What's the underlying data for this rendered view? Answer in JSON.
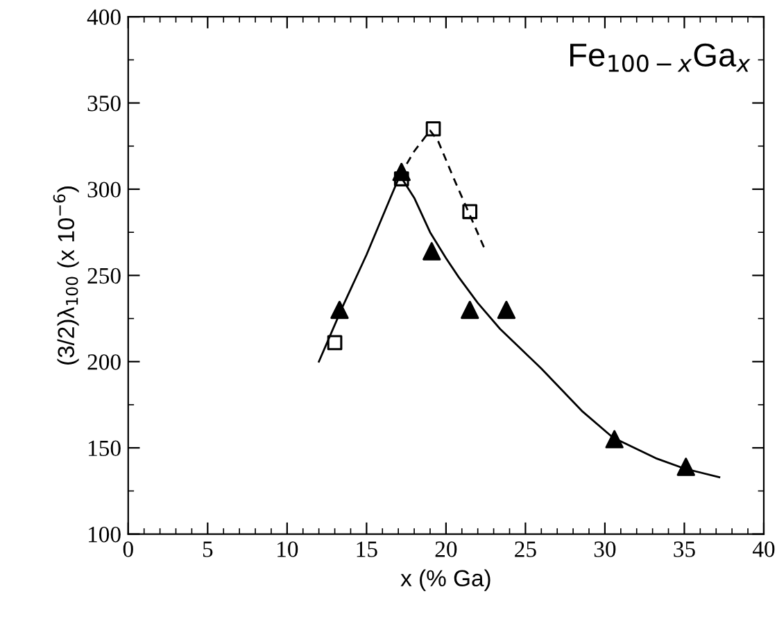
{
  "chart_data": {
    "type": "scatter",
    "xlabel": "x (% Ga)",
    "ylabel": "(3/2)λ$_{100}$ (x 10$^{−6}$)",
    "xlim": [
      0,
      40
    ],
    "ylim": [
      100,
      400
    ],
    "xticks": [
      0,
      5,
      10,
      15,
      20,
      25,
      30,
      35,
      40
    ],
    "yticks": [
      100,
      150,
      200,
      250,
      300,
      350,
      400
    ],
    "grid": false,
    "legend": false,
    "annotations": [
      "Fe$_{100−x}$Ga$_{x}$"
    ],
    "series": [
      {
        "marker": "triangle",
        "color": "#000000",
        "x": [
          13.3,
          17.2,
          19.1,
          21.5,
          23.8,
          30.6,
          35.1
        ],
        "values": [
          230,
          310,
          264,
          230,
          230,
          155,
          139
        ]
      },
      {
        "marker": "square",
        "color": "#000000",
        "x": [
          13,
          17.2,
          19.2,
          21.5
        ],
        "values": [
          211,
          306,
          335,
          287
        ]
      },
      {
        "type": "line",
        "line_style": "solid",
        "color": "#000000",
        "x": [
          12,
          13.5,
          15,
          16.5,
          17.1,
          18,
          19,
          20,
          20.8,
          22,
          23.4,
          26,
          28.6,
          30.5,
          33.2,
          35,
          37.2
        ],
        "values": [
          200,
          232,
          262,
          295,
          308,
          295,
          275,
          260,
          249,
          234,
          219,
          196,
          171,
          156,
          144,
          138,
          133
        ]
      },
      {
        "type": "line",
        "line_style": "dashed",
        "color": "#000000",
        "x": [
          17.1,
          18,
          19,
          19.5,
          20.5,
          21.5,
          22.5
        ],
        "values": [
          308,
          322,
          334,
          328,
          306,
          285,
          264
        ]
      }
    ]
  }
}
